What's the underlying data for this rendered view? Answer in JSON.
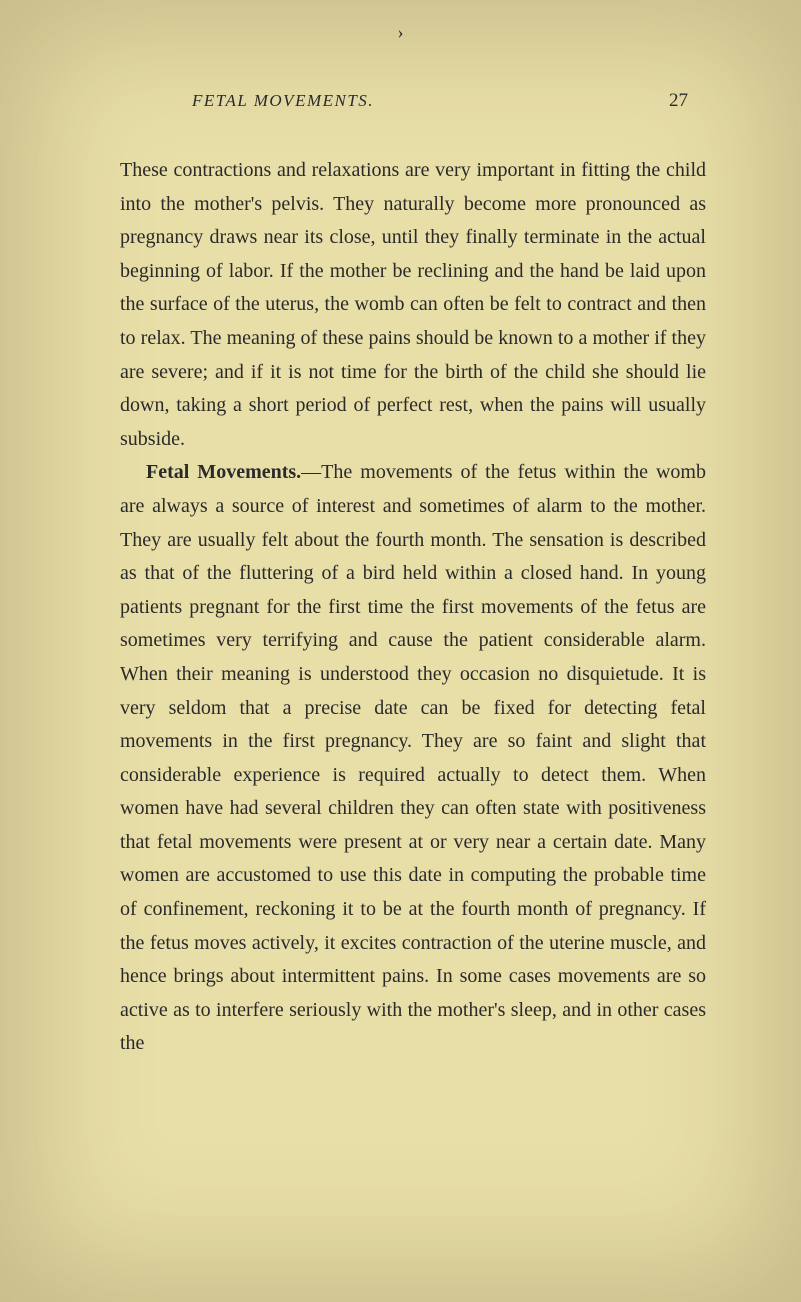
{
  "page": {
    "running_header": "FETAL MOVEMENTS.",
    "page_number": "27",
    "tick": "›",
    "paragraphs": {
      "p1": "These contractions and relaxations are very important in fitting the child into the mother's pelvis. They naturally become more pronounced as pregnancy draws near its close, until they finally terminate in the actual beginning of labor. If the mother be reclining and the hand be laid upon the surface of the uterus, the womb can often be felt to contract and then to relax. The meaning of these pains should be known to a mother if they are severe; and if it is not time for the birth of the child she should lie down, taking a short period of perfect rest, when the pains will usually subside.",
      "p2_title": "Fetal Movements.",
      "p2": "—The movements of the fetus within the womb are always a source of interest and sometimes of alarm to the mother. They are usually felt about the fourth month. The sensation is described as that of the fluttering of a bird held within a closed hand. In young patients pregnant for the first time the first movements of the fetus are sometimes very terrifying and cause the patient considerable alarm. When their meaning is understood they occasion no disquietude. It is very seldom that a precise date can be fixed for detecting fetal movements in the first pregnancy. They are so faint and slight that considerable experience is required actually to detect them. When women have had several children they can often state with positiveness that fetal movements were present at or very near a cer­tain date. Many women are accustomed to use this date in computing the probable time of confinement, reckon­ing it to be at the fourth month of pregnancy. If the fetus moves actively, it excites contraction of the uterine muscle, and hence brings about intermittent pains. In some cases movements are so active as to interfere seriously with the mother's sleep, and in other cases the"
    }
  },
  "style": {
    "background_color": "#e8dea8",
    "text_color": "#2a2a2a",
    "body_fontsize": 20,
    "header_fontsize": 17,
    "pagenum_fontsize": 19,
    "line_height": 1.68
  }
}
